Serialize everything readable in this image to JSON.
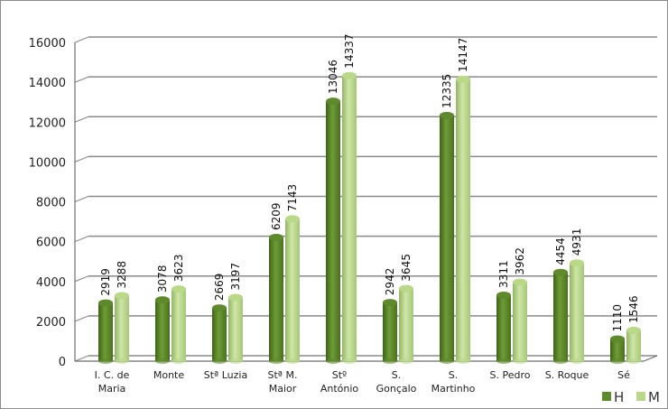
{
  "chart_data": {
    "type": "bar",
    "title": "",
    "xlabel": "",
    "ylabel": "",
    "ylim": [
      0,
      16000
    ],
    "yticks": [
      0,
      2000,
      4000,
      6000,
      8000,
      10000,
      12000,
      14000,
      16000
    ],
    "grid": true,
    "legend_position": "bottom-right",
    "categories": [
      [
        "I. C. de",
        "Maria"
      ],
      [
        "Monte"
      ],
      [
        "Stª Luzia"
      ],
      [
        "Stª M.",
        "Maior"
      ],
      [
        "Stº",
        "António"
      ],
      [
        "S.",
        "Gonçalo"
      ],
      [
        "S.",
        "Martinho"
      ],
      [
        "S. Pedro"
      ],
      [
        "S. Roque"
      ],
      [
        "Sé"
      ]
    ],
    "series": [
      {
        "name": "H",
        "color": "#5e8a2b",
        "values": [
          2919,
          3078,
          2669,
          6209,
          13046,
          2942,
          12335,
          3311,
          4454,
          1110
        ]
      },
      {
        "name": "M",
        "color": "#b9d888",
        "values": [
          3288,
          3623,
          3197,
          7143,
          14337,
          3645,
          14147,
          3962,
          4931,
          1546
        ]
      }
    ]
  }
}
